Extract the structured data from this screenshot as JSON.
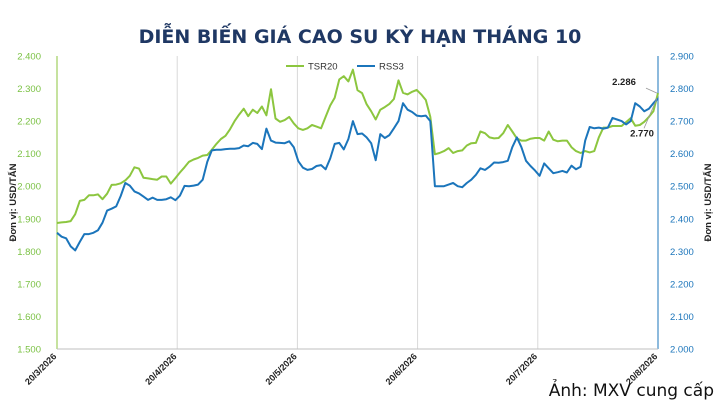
{
  "chart_data": {
    "type": "line",
    "title": "DIỄN BIẾN GIÁ CAO SU KỲ HẠN THÁNG 10",
    "ylabel": "Đơn vị: USD/TẤN",
    "y2label": "Đơn vị: USD/TẤN",
    "ylim": [
      1500,
      2400
    ],
    "y2lim": [
      2000,
      2900
    ],
    "yticks": [
      "1.500",
      "1.600",
      "1.700",
      "1.800",
      "1.900",
      "2.000",
      "2.100",
      "2.200",
      "2.300",
      "2.400"
    ],
    "y2ticks": [
      "2.000",
      "2.100",
      "2.200",
      "2.300",
      "2.400",
      "2.500",
      "2.600",
      "2.700",
      "2.800",
      "2.900"
    ],
    "xticks": [
      "20/3/2026",
      "20/4/2026",
      "20/5/2026",
      "20/6/2026",
      "20/7/2026",
      "20/8/2026"
    ],
    "grid": "vertical",
    "legend": "top-center",
    "colors": {
      "tsr20": "#8cc63f",
      "rss3": "#1b75bb"
    },
    "series": [
      {
        "name": "TSR20",
        "axis": "left",
        "values": [
          1887,
          1889,
          1890,
          1893,
          1914,
          1955,
          1958,
          1972,
          1972,
          1975,
          1960,
          1977,
          2004,
          2005,
          2009,
          2018,
          2032,
          2058,
          2054,
          2026,
          2024,
          2022,
          2020,
          2030,
          2030,
          2008,
          2025,
          2042,
          2058,
          2075,
          2082,
          2087,
          2094,
          2096,
          2112,
          2130,
          2145,
          2155,
          2175,
          2200,
          2220,
          2238,
          2215,
          2235,
          2225,
          2245,
          2218,
          2298,
          2208,
          2198,
          2203,
          2213,
          2193,
          2178,
          2173,
          2178,
          2188,
          2183,
          2178,
          2213,
          2248,
          2272,
          2328,
          2338,
          2322,
          2358,
          2295,
          2286,
          2252,
          2230,
          2205,
          2235,
          2243,
          2253,
          2268,
          2325,
          2287,
          2282,
          2290,
          2296,
          2282,
          2265,
          2213,
          2098,
          2102,
          2108,
          2117,
          2102,
          2108,
          2110,
          2125,
          2132,
          2133,
          2168,
          2163,
          2150,
          2147,
          2148,
          2163,
          2188,
          2168,
          2147,
          2140,
          2140,
          2146,
          2148,
          2148,
          2140,
          2168,
          2143,
          2138,
          2140,
          2140,
          2120,
          2108,
          2102,
          2108,
          2104,
          2108,
          2150,
          2180,
          2180,
          2185,
          2185,
          2185,
          2197,
          2209,
          2186,
          2188,
          2198,
          2213,
          2230,
          2286
        ]
      },
      {
        "name": "RSS3",
        "axis": "right",
        "values": [
          2357,
          2345,
          2340,
          2315,
          2303,
          2329,
          2353,
          2353,
          2357,
          2365,
          2388,
          2425,
          2431,
          2438,
          2470,
          2510,
          2502,
          2484,
          2478,
          2468,
          2458,
          2465,
          2458,
          2458,
          2460,
          2466,
          2457,
          2471,
          2501,
          2500,
          2502,
          2505,
          2520,
          2575,
          2610,
          2612,
          2612,
          2614,
          2615,
          2615,
          2617,
          2625,
          2623,
          2633,
          2630,
          2614,
          2677,
          2640,
          2634,
          2633,
          2632,
          2638,
          2620,
          2577,
          2557,
          2550,
          2553,
          2562,
          2565,
          2552,
          2585,
          2630,
          2633,
          2613,
          2645,
          2700,
          2660,
          2662,
          2650,
          2632,
          2580,
          2660,
          2648,
          2657,
          2678,
          2700,
          2755,
          2735,
          2728,
          2717,
          2715,
          2717,
          2700,
          2500,
          2500,
          2500,
          2505,
          2510,
          2500,
          2497,
          2510,
          2520,
          2535,
          2555,
          2550,
          2560,
          2573,
          2572,
          2574,
          2578,
          2620,
          2650,
          2620,
          2578,
          2562,
          2548,
          2532,
          2570,
          2555,
          2540,
          2543,
          2547,
          2542,
          2563,
          2552,
          2560,
          2640,
          2682,
          2678,
          2680,
          2677,
          2680,
          2710,
          2705,
          2700,
          2690,
          2700,
          2755,
          2745,
          2730,
          2738,
          2755,
          2770
        ]
      }
    ],
    "annotations": [
      {
        "series": "TSR20",
        "label": "2.286"
      },
      {
        "series": "RSS3",
        "label": "2.770"
      }
    ]
  },
  "credit": "Ảnh: MXV cung cấp"
}
